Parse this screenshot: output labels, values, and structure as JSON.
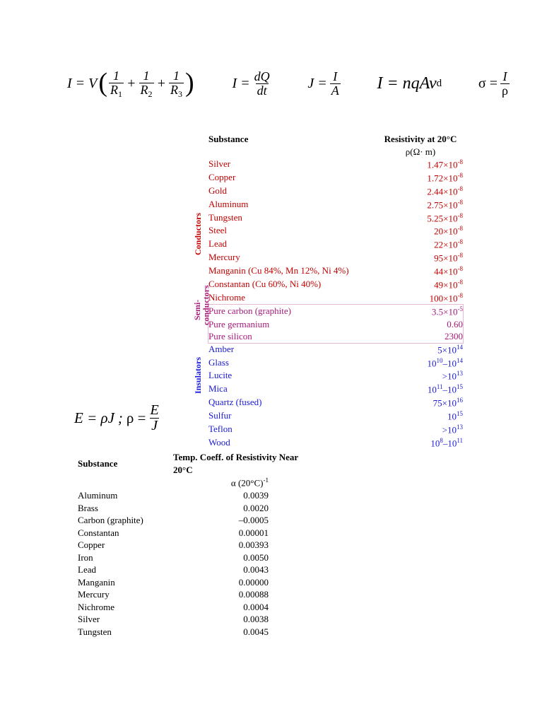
{
  "equations": {
    "eq1": {
      "lhs": "I = V",
      "r1": "R",
      "r1s": "1",
      "r2": "R",
      "r2s": "2",
      "r3": "R",
      "r3s": "3",
      "one": "1"
    },
    "eq2": {
      "lhs": "I =",
      "num": "dQ",
      "den": "dt"
    },
    "eq3": {
      "lhs": "J =",
      "num": "I",
      "den": "A"
    },
    "eq4_text": "I = nqAv",
    "eq4_sub": "d",
    "eq5": {
      "lhs": "σ =",
      "num": "I",
      "den": "ρ"
    },
    "eq6_a": "E = ρJ",
    "eq6_b": "ρ =",
    "eq6_num": "E",
    "eq6_den": "J"
  },
  "resistivity": {
    "header_sub": "Substance",
    "header_val": "Resistivity at 20°C",
    "unit": "ρ(Ω· m)",
    "group_labels": {
      "cond": "Conductors",
      "semi": "Semi-\nconductors",
      "ins": "Insulators"
    },
    "conductors": [
      {
        "n": "Silver",
        "v": "1.47×10",
        "e": "-8"
      },
      {
        "n": "Copper",
        "v": "1.72×10",
        "e": "-8"
      },
      {
        "n": "Gold",
        "v": "2.44×10",
        "e": "-8"
      },
      {
        "n": "Aluminum",
        "v": "2.75×10",
        "e": "-8"
      },
      {
        "n": "Tungsten",
        "v": "5.25×10",
        "e": "-8"
      },
      {
        "n": "Steel",
        "v": "20×10",
        "e": "-8"
      },
      {
        "n": "Lead",
        "v": "22×10",
        "e": "-8"
      },
      {
        "n": "Mercury",
        "v": "95×10",
        "e": "-8"
      },
      {
        "n": "Manganin (Cu 84%, Mn 12%, Ni 4%)",
        "v": "44×10",
        "e": "-8"
      },
      {
        "n": "Constantan (Cu 60%, Ni 40%)",
        "v": "49×10",
        "e": "-8"
      },
      {
        "n": "Nichrome",
        "v": "100×10",
        "e": "-8"
      }
    ],
    "semiconductors": [
      {
        "n": "Pure carbon (graphite)",
        "v": "3.5×10",
        "e": "-5"
      },
      {
        "n": "Pure germanium",
        "v": "0.60",
        "e": ""
      },
      {
        "n": "Pure silicon",
        "v": "2300",
        "e": ""
      }
    ],
    "insulators": [
      {
        "n": "Amber",
        "v": "5×10",
        "e": "14"
      },
      {
        "n": "Glass",
        "v": "10",
        "e": "10",
        "sep": "–10",
        "e2": "14"
      },
      {
        "n": "Lucite",
        "v": ">10",
        "e": "13"
      },
      {
        "n": "Mica",
        "v": "10",
        "e": "11",
        "sep": "–10",
        "e2": "15"
      },
      {
        "n": "Quartz (fused)",
        "v": "75×10",
        "e": "16"
      },
      {
        "n": "Sulfur",
        "v": "10",
        "e": "15"
      },
      {
        "n": "Teflon",
        "v": ">10",
        "e": "13"
      },
      {
        "n": "Wood",
        "v": "10",
        "e": "8",
        "sep": "–10",
        "e2": "11"
      }
    ]
  },
  "coeff": {
    "header_sub": "Substance",
    "header_val": "Temp. Coeff. of Resistivity Near 20°C",
    "unit_a": "α (20°C)",
    "unit_exp": "-1",
    "rows": [
      {
        "n": "Aluminum",
        "v": "0.0039"
      },
      {
        "n": "Brass",
        "v": "0.0020"
      },
      {
        "n": "Carbon (graphite)",
        "v": "–0.0005"
      },
      {
        "n": "Constantan",
        "v": "0.00001"
      },
      {
        "n": "Copper",
        "v": "0.00393"
      },
      {
        "n": "Iron",
        "v": "0.0050"
      },
      {
        "n": "Lead",
        "v": "0.0043"
      },
      {
        "n": "Manganin",
        "v": "0.00000"
      },
      {
        "n": "Mercury",
        "v": "0.00088"
      },
      {
        "n": "Nichrome",
        "v": "0.0004"
      },
      {
        "n": "Silver",
        "v": "0.0038"
      },
      {
        "n": "Tungsten",
        "v": "0.0045"
      }
    ]
  }
}
